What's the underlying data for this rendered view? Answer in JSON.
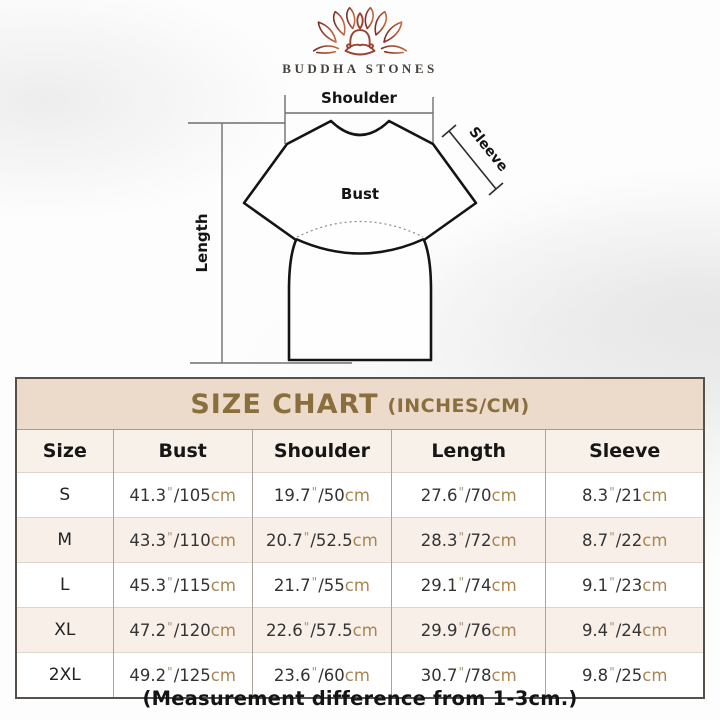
{
  "brand": {
    "name": "BUDDHA STONES"
  },
  "diagram": {
    "labels": {
      "shoulder": "Shoulder",
      "sleeve": "Sleeve",
      "bust": "Bust",
      "length": "Length"
    }
  },
  "size_chart": {
    "title": "SIZE CHART",
    "title_suffix": "(INCHES/CM)",
    "columns": [
      "Size",
      "Bust",
      "Shoulder",
      "Length",
      "Sleeve"
    ],
    "units": {
      "inch_mark": "\"",
      "separator": "/",
      "cm_suffix": "cm"
    },
    "rows": [
      {
        "size": "S",
        "bust": {
          "in": "41.3",
          "cm": "105"
        },
        "shoulder": {
          "in": "19.7",
          "cm": "50"
        },
        "length": {
          "in": "27.6",
          "cm": "70"
        },
        "sleeve": {
          "in": "8.3",
          "cm": "21"
        }
      },
      {
        "size": "M",
        "bust": {
          "in": "43.3",
          "cm": "110"
        },
        "shoulder": {
          "in": "20.7",
          "cm": "52.5"
        },
        "length": {
          "in": "28.3",
          "cm": "72"
        },
        "sleeve": {
          "in": "8.7",
          "cm": "22"
        }
      },
      {
        "size": "L",
        "bust": {
          "in": "45.3",
          "cm": "115"
        },
        "shoulder": {
          "in": "21.7",
          "cm": "55"
        },
        "length": {
          "in": "29.1",
          "cm": "74"
        },
        "sleeve": {
          "in": "9.1",
          "cm": "23"
        }
      },
      {
        "size": "XL",
        "bust": {
          "in": "47.2",
          "cm": "120"
        },
        "shoulder": {
          "in": "22.6",
          "cm": "57.5"
        },
        "length": {
          "in": "29.9",
          "cm": "76"
        },
        "sleeve": {
          "in": "9.4",
          "cm": "24"
        }
      },
      {
        "size": "2XL",
        "bust": {
          "in": "49.2",
          "cm": "125"
        },
        "shoulder": {
          "in": "23.6",
          "cm": "60"
        },
        "length": {
          "in": "30.7",
          "cm": "78"
        },
        "sleeve": {
          "in": "9.8",
          "cm": "25"
        }
      }
    ]
  },
  "footer": {
    "note": "(Measurement difference from 1-3cm.)"
  },
  "colors": {
    "title_band_bg": "#ecdbca",
    "title_text": "#8a6e3e",
    "row_alt_bg": "#f7efe8",
    "cm_text": "#aa8551",
    "table_border": "#57514b",
    "logo_dark": "#7b2f27",
    "logo_light": "#c66a3e"
  }
}
